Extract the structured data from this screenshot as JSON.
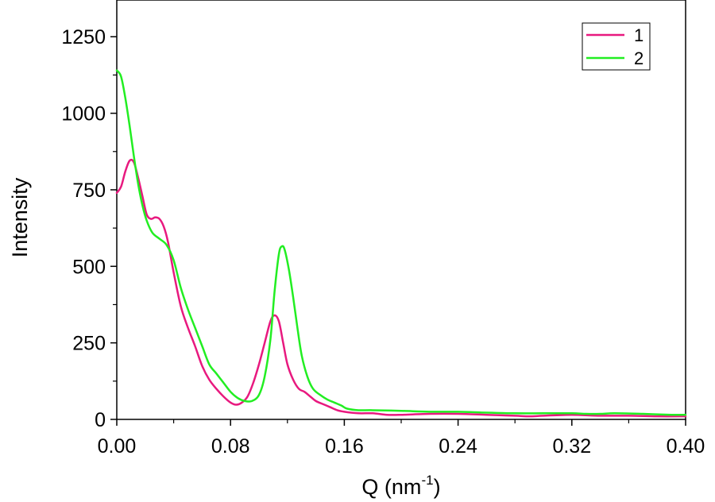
{
  "chart_data": {
    "type": "line",
    "title": "",
    "xlabel": {
      "text": "Q (nm",
      "sup": "-1",
      "close": ")"
    },
    "ylabel": "Intensity",
    "xlim": [
      0,
      0.4
    ],
    "ylim": [
      0,
      1370
    ],
    "xticks": [
      0,
      0.08,
      0.16,
      0.24,
      0.32,
      0.4
    ],
    "xtick_labels": [
      "0.00",
      "0.08",
      "0.16",
      "0.24",
      "0.32",
      "0.40"
    ],
    "yticks": [
      0,
      250,
      500,
      750,
      1000,
      1250
    ],
    "ytick_labels": [
      "0",
      "250",
      "500",
      "750",
      "1000",
      "1250"
    ],
    "grid": false,
    "legend_position": "top-right",
    "series": [
      {
        "name": "1",
        "color": "#E8197F",
        "points": [
          [
            0.0,
            740
          ],
          [
            0.003,
            760
          ],
          [
            0.006,
            810
          ],
          [
            0.009,
            845
          ],
          [
            0.012,
            840
          ],
          [
            0.015,
            790
          ],
          [
            0.018,
            730
          ],
          [
            0.021,
            670
          ],
          [
            0.024,
            655
          ],
          [
            0.027,
            660
          ],
          [
            0.03,
            655
          ],
          [
            0.033,
            630
          ],
          [
            0.036,
            580
          ],
          [
            0.04,
            480
          ],
          [
            0.045,
            370
          ],
          [
            0.05,
            300
          ],
          [
            0.055,
            240
          ],
          [
            0.06,
            175
          ],
          [
            0.065,
            130
          ],
          [
            0.07,
            100
          ],
          [
            0.075,
            75
          ],
          [
            0.08,
            55
          ],
          [
            0.084,
            48
          ],
          [
            0.088,
            55
          ],
          [
            0.092,
            75
          ],
          [
            0.096,
            120
          ],
          [
            0.1,
            180
          ],
          [
            0.104,
            250
          ],
          [
            0.108,
            320
          ],
          [
            0.111,
            340
          ],
          [
            0.114,
            320
          ],
          [
            0.117,
            250
          ],
          [
            0.12,
            180
          ],
          [
            0.124,
            130
          ],
          [
            0.128,
            100
          ],
          [
            0.132,
            90
          ],
          [
            0.136,
            75
          ],
          [
            0.14,
            60
          ],
          [
            0.145,
            50
          ],
          [
            0.15,
            40
          ],
          [
            0.155,
            30
          ],
          [
            0.16,
            25
          ],
          [
            0.17,
            20
          ],
          [
            0.18,
            20
          ],
          [
            0.19,
            15
          ],
          [
            0.2,
            15
          ],
          [
            0.22,
            18
          ],
          [
            0.24,
            18
          ],
          [
            0.26,
            15
          ],
          [
            0.28,
            12
          ],
          [
            0.29,
            10
          ],
          [
            0.3,
            12
          ],
          [
            0.32,
            15
          ],
          [
            0.34,
            12
          ],
          [
            0.36,
            12
          ],
          [
            0.38,
            10
          ],
          [
            0.4,
            10
          ]
        ]
      },
      {
        "name": "2",
        "color": "#22EE22",
        "points": [
          [
            0.0,
            1140
          ],
          [
            0.003,
            1120
          ],
          [
            0.006,
            1050
          ],
          [
            0.009,
            960
          ],
          [
            0.012,
            860
          ],
          [
            0.015,
            770
          ],
          [
            0.018,
            700
          ],
          [
            0.021,
            650
          ],
          [
            0.025,
            610
          ],
          [
            0.03,
            590
          ],
          [
            0.035,
            570
          ],
          [
            0.04,
            520
          ],
          [
            0.045,
            430
          ],
          [
            0.05,
            360
          ],
          [
            0.055,
            300
          ],
          [
            0.06,
            240
          ],
          [
            0.065,
            180
          ],
          [
            0.07,
            150
          ],
          [
            0.075,
            120
          ],
          [
            0.08,
            90
          ],
          [
            0.085,
            70
          ],
          [
            0.09,
            60
          ],
          [
            0.095,
            60
          ],
          [
            0.1,
            80
          ],
          [
            0.104,
            140
          ],
          [
            0.108,
            260
          ],
          [
            0.111,
            420
          ],
          [
            0.114,
            540
          ],
          [
            0.116,
            565
          ],
          [
            0.118,
            555
          ],
          [
            0.121,
            490
          ],
          [
            0.124,
            400
          ],
          [
            0.127,
            300
          ],
          [
            0.13,
            210
          ],
          [
            0.134,
            140
          ],
          [
            0.138,
            100
          ],
          [
            0.143,
            80
          ],
          [
            0.148,
            65
          ],
          [
            0.153,
            55
          ],
          [
            0.158,
            45
          ],
          [
            0.162,
            35
          ],
          [
            0.17,
            30
          ],
          [
            0.18,
            30
          ],
          [
            0.2,
            28
          ],
          [
            0.22,
            25
          ],
          [
            0.24,
            25
          ],
          [
            0.26,
            22
          ],
          [
            0.28,
            20
          ],
          [
            0.3,
            20
          ],
          [
            0.32,
            20
          ],
          [
            0.33,
            18
          ],
          [
            0.34,
            18
          ],
          [
            0.35,
            20
          ],
          [
            0.37,
            18
          ],
          [
            0.39,
            15
          ],
          [
            0.4,
            15
          ]
        ]
      }
    ]
  }
}
